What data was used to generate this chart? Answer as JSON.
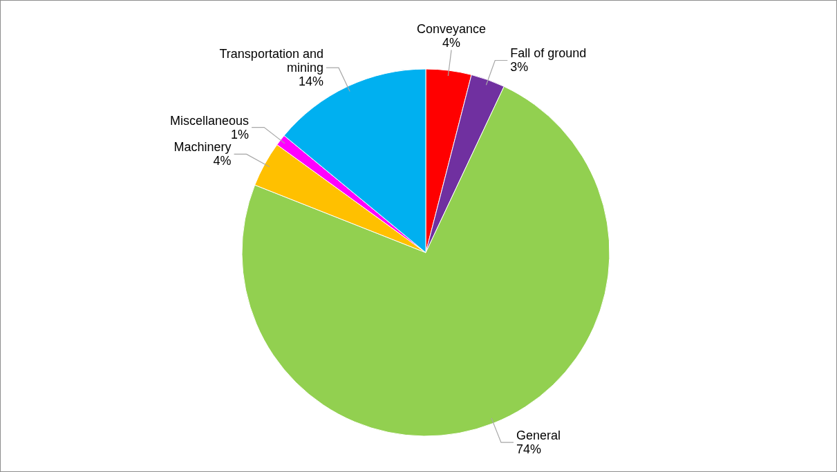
{
  "chart_data": {
    "type": "pie",
    "categories": [
      "Conveyance",
      "Fall of ground",
      "General",
      "Machinery",
      "Miscellaneous",
      "Transportation and mining"
    ],
    "values": [
      4,
      3,
      74,
      4,
      1,
      14
    ],
    "colors": [
      "#ff0000",
      "#7030a0",
      "#92d050",
      "#ffc000",
      "#ff00ff",
      "#00b0f0"
    ],
    "value_labels": [
      "4%",
      "3%",
      "74%",
      "4%",
      "1%",
      "14%"
    ]
  }
}
